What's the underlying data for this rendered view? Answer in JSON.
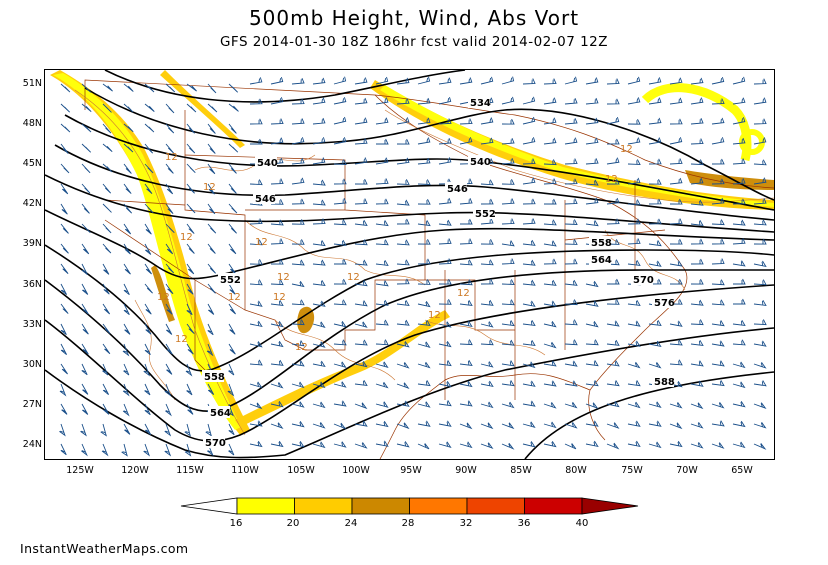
{
  "title": "500mb Height, Wind, Abs Vort",
  "subtitle": "GFS 2014-01-30 18Z 186hr fcst valid 2014-02-07 12Z",
  "lat_labels": [
    "51N",
    "48N",
    "45N",
    "42N",
    "39N",
    "36N",
    "33N",
    "30N",
    "27N",
    "24N"
  ],
  "lon_labels": [
    "125W",
    "120W",
    "115W",
    "110W",
    "105W",
    "100W",
    "95W",
    "90W",
    "85W",
    "80W",
    "75W",
    "70W",
    "65W"
  ],
  "height_contours": [
    "534",
    "540",
    "546",
    "552",
    "558",
    "564",
    "570",
    "576",
    "588"
  ],
  "vort_label": "12",
  "colorbar": {
    "labels": [
      "16",
      "20",
      "24",
      "28",
      "32",
      "36",
      "40"
    ],
    "colors": [
      "#ffffff",
      "#ffff00",
      "#ffcc00",
      "#cc8800",
      "#ff7700",
      "#ee4400",
      "#cc0000",
      "#990000"
    ]
  },
  "footer": "InstantWeatherMaps.com"
}
